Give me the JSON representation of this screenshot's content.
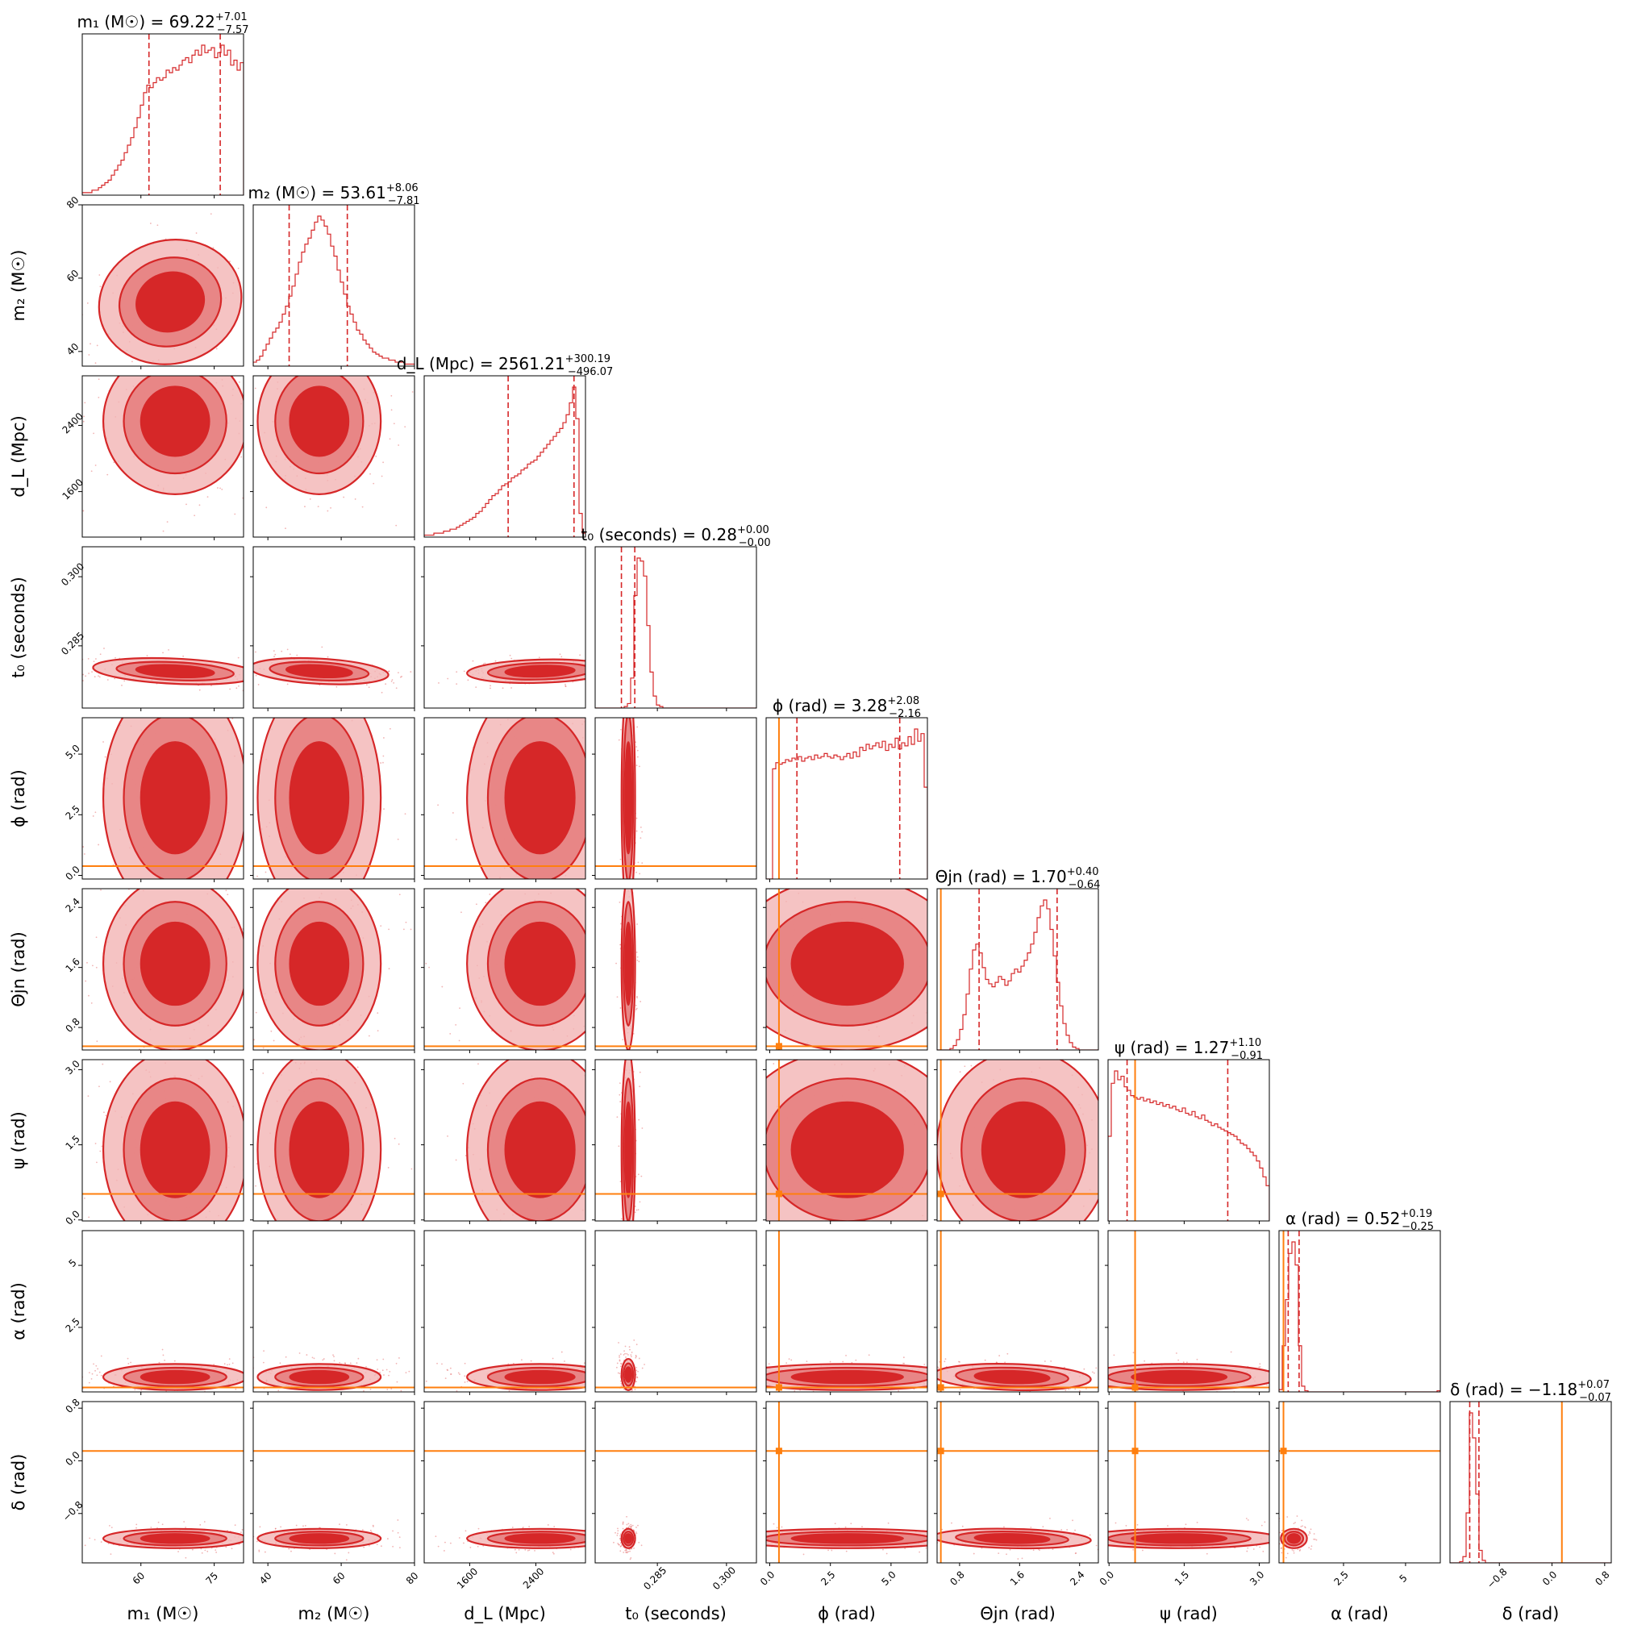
{
  "chart_data": {
    "type": "corner",
    "colors": {
      "posterior": "#d62728",
      "truth": "#ff7f0e"
    },
    "parameters": [
      {
        "key": "m1",
        "axis_label": "m₁ (M☉)",
        "title": "m₁ (M☉) = 69.22",
        "median": 69.22,
        "err_plus": "+7.01",
        "err_minus": "−7.57",
        "range": [
          48,
          81
        ],
        "ticks": [
          60,
          75
        ],
        "truth": null
      },
      {
        "key": "m2",
        "axis_label": "m₂ (M☉)",
        "title": "m₂ (M☉) = 53.61",
        "median": 53.61,
        "err_plus": "+8.06",
        "err_minus": "−7.81",
        "range": [
          36,
          80
        ],
        "ticks": [
          40,
          60,
          80
        ],
        "truth": null
      },
      {
        "key": "dL",
        "axis_label": "d_L (Mpc)",
        "title": "d_L (Mpc) = 2561.21",
        "median": 2561.21,
        "err_plus": "+300.19",
        "err_minus": "−496.07",
        "range": [
          1050,
          3000
        ],
        "ticks": [
          1600,
          2400
        ],
        "truth": null
      },
      {
        "key": "t0",
        "axis_label": "t₀ (seconds)",
        "title": "t₀ (seconds) = 0.28",
        "median": 0.28,
        "err_plus": "+0.00",
        "err_minus": "−0.00",
        "range": [
          0.2715,
          0.3065
        ],
        "ticks": [
          0.285,
          0.3
        ],
        "tick_labels": [
          "0.285",
          "0.300"
        ],
        "truth": null
      },
      {
        "key": "phi",
        "axis_label": "ϕ (rad)",
        "title": "ϕ (rad) = 3.28",
        "median": 3.28,
        "err_plus": "+2.08",
        "err_minus": "−2.16",
        "range": [
          -0.15,
          6.5
        ],
        "ticks": [
          0.0,
          2.5,
          5.0
        ],
        "tick_labels": [
          "0.0",
          "2.5",
          "5.0"
        ],
        "truth": 0.38
      },
      {
        "key": "theta",
        "axis_label": "Θjn (rad)",
        "title": "Θjn (rad) = 1.70",
        "median": 1.7,
        "err_plus": "+0.40",
        "err_minus": "−0.64",
        "range": [
          0.5,
          2.65
        ],
        "ticks": [
          0.8,
          1.6,
          2.4
        ],
        "truth": 0.55
      },
      {
        "key": "psi",
        "axis_label": "ψ (rad)",
        "title": "ψ (rad) = 1.27",
        "median": 1.27,
        "err_plus": "+1.10",
        "err_minus": "−0.91",
        "range": [
          -0.02,
          3.2
        ],
        "ticks": [
          0.0,
          1.5,
          3.0
        ],
        "tick_labels": [
          "0.0",
          "1.5",
          "3.0"
        ],
        "truth": 0.52
      },
      {
        "key": "alpha",
        "axis_label": "α (rad)",
        "title": "α (rad) = 0.52",
        "median": 0.52,
        "err_plus": "+0.19",
        "err_minus": "−0.25",
        "range": [
          -0.1,
          6.4
        ],
        "ticks": [
          2.5,
          5.0
        ],
        "truth": 0.08
      },
      {
        "key": "delta",
        "axis_label": "δ (rad)",
        "title": "δ (rad) = −1.18",
        "median": -1.18,
        "err_plus": "+0.07",
        "err_minus": "−0.07",
        "range": [
          -1.55,
          0.9
        ],
        "ticks": [
          -0.8,
          0.0,
          0.8
        ],
        "tick_labels": [
          "−0.8",
          "0.0",
          "0.8"
        ],
        "truth": 0.15
      }
    ],
    "quantiles": [
      [
        61.65,
        76.23
      ],
      [
        45.8,
        61.67
      ],
      [
        2065.14,
        2861.4
      ],
      [
        0.2772,
        0.2801
      ],
      [
        1.12,
        5.36
      ],
      [
        1.06,
        2.1
      ],
      [
        0.36,
        2.37
      ],
      [
        0.27,
        0.71
      ],
      [
        -1.25,
        -1.11
      ]
    ],
    "histograms": {
      "m1": {
        "bin_start": 48,
        "bin_width": 0.66,
        "counts": [
          1,
          1,
          1,
          2,
          2,
          3,
          4,
          5,
          6,
          8,
          10,
          12,
          14,
          17,
          20,
          23,
          27,
          31,
          36,
          41,
          44,
          43,
          45,
          47,
          46,
          47,
          50,
          49,
          51,
          50,
          52,
          54,
          55,
          53,
          56,
          58,
          56,
          60,
          57,
          58,
          59,
          55,
          57,
          60,
          56,
          58,
          52,
          54,
          50,
          53
        ]
      },
      "m2": {
        "bin_start": 36,
        "bin_width": 0.88,
        "counts": [
          2,
          3,
          5,
          8,
          11,
          14,
          17,
          19,
          22,
          26,
          30,
          35,
          40,
          46,
          52,
          57,
          61,
          64,
          68,
          72,
          75,
          73,
          70,
          66,
          60,
          55,
          48,
          42,
          36,
          30,
          26,
          22,
          18,
          16,
          13,
          11,
          9,
          7,
          6,
          5,
          4,
          4,
          3,
          3,
          2,
          2,
          2,
          1,
          1,
          1
        ]
      },
      "dL": {
        "bin_start": 1050,
        "bin_width": 39,
        "counts": [
          1,
          1,
          1,
          2,
          2,
          2,
          3,
          3,
          4,
          4,
          5,
          6,
          7,
          8,
          9,
          10,
          12,
          13,
          15,
          17,
          19,
          21,
          22,
          24,
          26,
          27,
          28,
          30,
          31,
          32,
          34,
          35,
          37,
          38,
          39,
          41,
          43,
          45,
          47,
          49,
          51,
          53,
          55,
          58,
          62,
          68,
          76,
          60,
          12,
          2
        ]
      },
      "t0": {
        "bin_start": 0.2715,
        "bin_width": 0.0007,
        "counts": [
          0,
          0,
          0,
          0,
          0,
          0,
          0,
          0,
          0,
          1,
          3,
          20,
          75,
          100,
          98,
          88,
          55,
          24,
          8,
          2,
          1,
          0,
          0,
          0,
          0,
          0,
          0,
          0,
          0,
          0,
          0,
          0,
          0,
          0,
          0,
          0,
          0,
          0,
          0,
          0,
          0,
          0,
          0,
          0,
          0,
          0,
          0,
          0,
          0,
          0
        ]
      },
      "phi": {
        "bin_start": -0.15,
        "bin_width": 0.133,
        "counts": [
          0,
          0,
          72,
          76,
          75,
          76,
          78,
          77,
          79,
          78,
          80,
          77,
          79,
          80,
          78,
          81,
          79,
          80,
          82,
          80,
          79,
          81,
          80,
          78,
          80,
          82,
          79,
          83,
          80,
          86,
          84,
          88,
          85,
          87,
          89,
          86,
          90,
          84,
          88,
          86,
          92,
          85,
          89,
          87,
          93,
          88,
          98,
          90,
          95,
          60
        ]
      },
      "theta": {
        "bin_start": 0.5,
        "bin_width": 0.043,
        "counts": [
          0,
          0,
          0,
          0,
          1,
          3,
          7,
          14,
          24,
          38,
          55,
          68,
          72,
          66,
          56,
          48,
          45,
          43,
          46,
          50,
          48,
          44,
          47,
          52,
          55,
          53,
          57,
          61,
          66,
          72,
          80,
          90,
          98,
          102,
          96,
          82,
          64,
          46,
          30,
          18,
          10,
          5,
          2,
          1,
          0,
          0,
          0,
          0,
          0,
          0
        ]
      },
      "psi": {
        "bin_start": -0.02,
        "bin_width": 0.0644,
        "counts": [
          48,
          78,
          85,
          80,
          82,
          76,
          74,
          71,
          70,
          69,
          70,
          68,
          69,
          67,
          68,
          66,
          67,
          65,
          66,
          64,
          65,
          63,
          62,
          64,
          61,
          60,
          62,
          59,
          58,
          60,
          57,
          56,
          54,
          55,
          53,
          52,
          51,
          50,
          49,
          48,
          46,
          44,
          43,
          41,
          39,
          37,
          34,
          30,
          25,
          20
        ]
      },
      "alpha": {
        "bin_start": -0.1,
        "bin_width": 0.13,
        "counts": [
          2,
          40,
          80,
          120,
          130,
          110,
          40,
          5,
          1,
          0,
          0,
          0,
          0,
          0,
          0,
          0,
          0,
          0,
          0,
          0,
          0,
          0,
          0,
          0,
          0,
          0,
          0,
          0,
          0,
          0,
          0,
          0,
          0,
          0,
          0,
          0,
          0,
          0,
          0,
          0,
          0,
          0,
          0,
          0,
          0,
          0,
          0,
          0,
          0,
          1
        ]
      },
      "delta": {
        "bin_start": -1.55,
        "bin_width": 0.049,
        "counts": [
          0,
          0,
          0,
          1,
          5,
          40,
          120,
          100,
          55,
          10,
          2,
          0,
          0,
          0,
          0,
          0,
          0,
          0,
          0,
          0,
          0,
          0,
          0,
          0,
          0,
          0,
          0,
          0,
          0,
          0,
          0,
          0,
          0,
          0,
          0,
          0,
          0,
          0,
          0,
          0,
          0,
          0,
          0,
          0,
          0,
          0,
          0,
          0,
          0,
          0
        ]
      }
    },
    "pairs_2d": [
      {
        "x": "m1",
        "y": "m2",
        "mean": [
          66,
          53.5
        ],
        "sd": [
          7,
          8
        ],
        "rho": 0.55
      },
      {
        "x": "m1",
        "y": "dL",
        "mean": [
          67,
          2450
        ],
        "sd": [
          7,
          420
        ],
        "rho": 0.0
      },
      {
        "x": "m2",
        "y": "dL",
        "mean": [
          54,
          2450
        ],
        "sd": [
          8,
          420
        ],
        "rho": 0.0
      },
      {
        "x": "m1",
        "y": "t0",
        "mean": [
          67,
          0.2795
        ],
        "sd": [
          8,
          0.0013
        ],
        "rho": -0.5
      },
      {
        "x": "m2",
        "y": "t0",
        "mean": [
          54,
          0.2795
        ],
        "sd": [
          9,
          0.0013
        ],
        "rho": -0.5
      },
      {
        "x": "dL",
        "y": "t0",
        "mean": [
          2450,
          0.2795
        ],
        "sd": [
          420,
          0.0012
        ],
        "rho": 0.3
      },
      {
        "x": "m1",
        "y": "phi",
        "mean": [
          67,
          3.2
        ],
        "sd": [
          7,
          2.3
        ],
        "rho": 0.0
      },
      {
        "x": "m2",
        "y": "phi",
        "mean": [
          54,
          3.2
        ],
        "sd": [
          8,
          2.3
        ],
        "rho": 0.0
      },
      {
        "x": "dL",
        "y": "phi",
        "mean": [
          2450,
          3.2
        ],
        "sd": [
          420,
          2.3
        ],
        "rho": 0.0
      },
      {
        "x": "t0",
        "y": "phi",
        "mean": [
          0.2787,
          3.2
        ],
        "sd": [
          0.0007,
          2.3
        ],
        "rho": 0.0
      },
      {
        "x": "m1",
        "y": "theta",
        "mean": [
          67,
          1.65
        ],
        "sd": [
          7,
          0.55
        ],
        "rho": 0.0
      },
      {
        "x": "m2",
        "y": "theta",
        "mean": [
          54,
          1.65
        ],
        "sd": [
          8,
          0.55
        ],
        "rho": 0.0
      },
      {
        "x": "dL",
        "y": "theta",
        "mean": [
          2450,
          1.65
        ],
        "sd": [
          420,
          0.55
        ],
        "rho": 0.0
      },
      {
        "x": "t0",
        "y": "theta",
        "mean": [
          0.2787,
          1.65
        ],
        "sd": [
          0.0007,
          0.55
        ],
        "rho": 0.0
      },
      {
        "x": "phi",
        "y": "theta",
        "mean": [
          3.2,
          1.65
        ],
        "sd": [
          2.3,
          0.55
        ],
        "rho": 0.0
      },
      {
        "x": "m1",
        "y": "psi",
        "mean": [
          67,
          1.4
        ],
        "sd": [
          7,
          0.95
        ],
        "rho": 0.0
      },
      {
        "x": "m2",
        "y": "psi",
        "mean": [
          54,
          1.4
        ],
        "sd": [
          8,
          0.95
        ],
        "rho": 0.0
      },
      {
        "x": "dL",
        "y": "psi",
        "mean": [
          2450,
          1.4
        ],
        "sd": [
          420,
          0.95
        ],
        "rho": 0.0
      },
      {
        "x": "t0",
        "y": "psi",
        "mean": [
          0.2787,
          1.4
        ],
        "sd": [
          0.0007,
          0.95
        ],
        "rho": 0.0
      },
      {
        "x": "phi",
        "y": "psi",
        "mean": [
          3.2,
          1.4
        ],
        "sd": [
          2.3,
          0.95
        ],
        "rho": 0.0
      },
      {
        "x": "theta",
        "y": "psi",
        "mean": [
          1.65,
          1.4
        ],
        "sd": [
          0.55,
          0.95
        ],
        "rho": 0.0
      },
      {
        "x": "m1",
        "y": "alpha",
        "mean": [
          67,
          0.5
        ],
        "sd": [
          7,
          0.25
        ],
        "rho": 0.0
      },
      {
        "x": "m2",
        "y": "alpha",
        "mean": [
          54,
          0.5
        ],
        "sd": [
          8,
          0.25
        ],
        "rho": 0.0
      },
      {
        "x": "dL",
        "y": "alpha",
        "mean": [
          2450,
          0.5
        ],
        "sd": [
          420,
          0.25
        ],
        "rho": 0.0
      },
      {
        "x": "t0",
        "y": "alpha",
        "mean": [
          0.2787,
          0.6
        ],
        "sd": [
          0.0007,
          0.3
        ],
        "rho": 0.0
      },
      {
        "x": "phi",
        "y": "alpha",
        "mean": [
          3.2,
          0.5
        ],
        "sd": [
          2.3,
          0.25
        ],
        "rho": 0.0
      },
      {
        "x": "theta",
        "y": "alpha",
        "mean": [
          1.5,
          0.5
        ],
        "sd": [
          0.5,
          0.25
        ],
        "rho": -0.3
      },
      {
        "x": "psi",
        "y": "alpha",
        "mean": [
          1.4,
          0.5
        ],
        "sd": [
          0.95,
          0.25
        ],
        "rho": 0.0
      },
      {
        "x": "m1",
        "y": "delta",
        "mean": [
          67,
          -1.18
        ],
        "sd": [
          7,
          0.07
        ],
        "rho": 0.0
      },
      {
        "x": "m2",
        "y": "delta",
        "mean": [
          54,
          -1.18
        ],
        "sd": [
          8,
          0.07
        ],
        "rho": 0.0
      },
      {
        "x": "dL",
        "y": "delta",
        "mean": [
          2450,
          -1.18
        ],
        "sd": [
          420,
          0.07
        ],
        "rho": 0.0
      },
      {
        "x": "t0",
        "y": "delta",
        "mean": [
          0.2787,
          -1.18
        ],
        "sd": [
          0.0007,
          0.07
        ],
        "rho": 0.0
      },
      {
        "x": "phi",
        "y": "delta",
        "mean": [
          3.2,
          -1.18
        ],
        "sd": [
          2.3,
          0.07
        ],
        "rho": 0.0
      },
      {
        "x": "theta",
        "y": "delta",
        "mean": [
          1.5,
          -1.18
        ],
        "sd": [
          0.5,
          0.07
        ],
        "rho": -0.3
      },
      {
        "x": "psi",
        "y": "delta",
        "mean": [
          1.4,
          -1.18
        ],
        "sd": [
          0.95,
          0.07
        ],
        "rho": 0.0
      },
      {
        "x": "alpha",
        "y": "delta",
        "mean": [
          0.5,
          -1.18
        ],
        "sd": [
          0.25,
          0.07
        ],
        "rho": 0.0
      }
    ],
    "grid": false,
    "legend": "none"
  }
}
